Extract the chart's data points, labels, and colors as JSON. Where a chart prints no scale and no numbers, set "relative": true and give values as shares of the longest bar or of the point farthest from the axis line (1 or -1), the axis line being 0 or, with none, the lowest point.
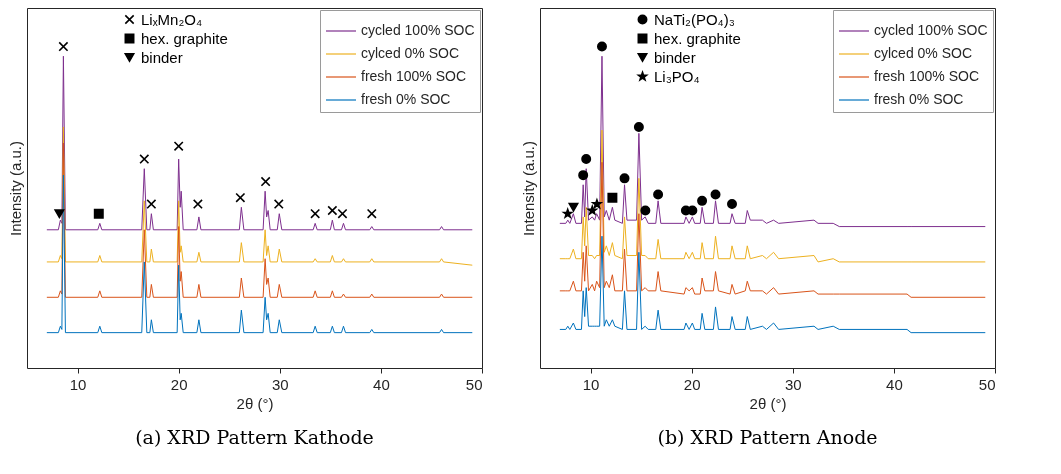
{
  "chart_data": [
    {
      "type": "line",
      "title": "(a) XRD Pattern Kathode",
      "xlabel": "2θ (°)",
      "ylabel": "Intensity (a.u.)",
      "relative": true,
      "tick_labels": "x",
      "legend": "top right",
      "xlim": [
        5,
        50
      ],
      "xticks": [
        10,
        20,
        30,
        40,
        50
      ],
      "x": [
        7,
        8.1,
        8.3,
        8.45,
        8.6,
        8.8,
        12.0,
        12.2,
        12.4,
        16.35,
        16.6,
        16.85,
        17.15,
        17.3,
        17.5,
        19.85,
        20.0,
        20.15,
        20.25,
        20.45,
        21.8,
        22.0,
        22.2,
        26.0,
        26.2,
        26.45,
        28.35,
        28.55,
        28.7,
        28.85,
        29.05,
        29.75,
        29.95,
        30.2,
        33.3,
        33.5,
        33.7,
        35.0,
        35.2,
        35.4,
        36.1,
        36.3,
        36.5,
        38.9,
        39.1,
        39.3,
        45.8,
        46.0,
        46.2,
        49
      ],
      "series": [
        {
          "name": "cycled 100% SOC",
          "color": "#7e2f8e",
          "values": [
            0.43,
            0.43,
            0.46,
            0.45,
            0.97,
            0.43,
            0.43,
            0.45,
            0.43,
            0.43,
            0.62,
            0.43,
            0.43,
            0.48,
            0.43,
            0.43,
            0.65,
            0.5,
            0.55,
            0.43,
            0.43,
            0.47,
            0.43,
            0.43,
            0.5,
            0.43,
            0.43,
            0.55,
            0.47,
            0.49,
            0.43,
            0.43,
            0.48,
            0.43,
            0.43,
            0.45,
            0.43,
            0.43,
            0.46,
            0.43,
            0.43,
            0.45,
            0.43,
            0.43,
            0.44,
            0.43,
            0.43,
            0.44,
            0.43,
            0.43
          ]
        },
        {
          "name": "cylced 0% SOC",
          "color": "#edb120",
          "values": [
            0.33,
            0.33,
            0.35,
            0.34,
            0.75,
            0.33,
            0.33,
            0.35,
            0.33,
            0.33,
            0.52,
            0.33,
            0.33,
            0.37,
            0.33,
            0.33,
            0.52,
            0.36,
            0.38,
            0.33,
            0.33,
            0.36,
            0.33,
            0.33,
            0.39,
            0.33,
            0.33,
            0.43,
            0.35,
            0.38,
            0.33,
            0.33,
            0.37,
            0.33,
            0.33,
            0.34,
            0.33,
            0.33,
            0.35,
            0.33,
            0.33,
            0.34,
            0.33,
            0.33,
            0.34,
            0.33,
            0.33,
            0.34,
            0.33,
            0.32
          ]
        },
        {
          "name": "fresh 100% SOC",
          "color": "#d95319",
          "values": [
            0.22,
            0.22,
            0.24,
            0.23,
            0.7,
            0.22,
            0.22,
            0.24,
            0.22,
            0.22,
            0.43,
            0.22,
            0.22,
            0.26,
            0.22,
            0.22,
            0.44,
            0.27,
            0.3,
            0.22,
            0.22,
            0.26,
            0.22,
            0.22,
            0.28,
            0.22,
            0.22,
            0.34,
            0.26,
            0.28,
            0.22,
            0.22,
            0.26,
            0.22,
            0.22,
            0.24,
            0.22,
            0.22,
            0.24,
            0.22,
            0.22,
            0.23,
            0.22,
            0.22,
            0.23,
            0.22,
            0.22,
            0.23,
            0.22,
            0.22
          ]
        },
        {
          "name": "fresh 0% SOC",
          "color": "#0072bd",
          "values": [
            0.11,
            0.11,
            0.13,
            0.12,
            0.6,
            0.11,
            0.11,
            0.13,
            0.11,
            0.11,
            0.33,
            0.11,
            0.11,
            0.15,
            0.11,
            0.11,
            0.32,
            0.15,
            0.17,
            0.11,
            0.11,
            0.15,
            0.11,
            0.11,
            0.18,
            0.11,
            0.11,
            0.22,
            0.15,
            0.17,
            0.11,
            0.11,
            0.15,
            0.11,
            0.11,
            0.13,
            0.11,
            0.11,
            0.13,
            0.11,
            0.11,
            0.13,
            0.11,
            0.11,
            0.12,
            0.11,
            0.11,
            0.12,
            0.11,
            0.11
          ]
        },
        {
          "name": "LiₓMn₂O₄",
          "type": "scatter",
          "marker": "cross",
          "color": "#000000",
          "x": [
            8.6,
            16.6,
            17.3,
            20.0,
            21.9,
            26.1,
            28.6,
            29.9,
            33.5,
            35.2,
            36.2,
            39.1
          ],
          "values": [
            1.0,
            0.65,
            0.51,
            0.69,
            0.51,
            0.53,
            0.58,
            0.51,
            0.48,
            0.49,
            0.48,
            0.48
          ]
        },
        {
          "name": "hex. graphite",
          "type": "scatter",
          "marker": "square",
          "color": "#000000",
          "x": [
            12.1
          ],
          "values": [
            0.48
          ]
        },
        {
          "name": "binder",
          "type": "scatter",
          "marker": "triangle",
          "color": "#000000",
          "x": [
            8.2
          ],
          "values": [
            0.48
          ]
        }
      ]
    },
    {
      "type": "line",
      "title": "(b) XRD Pattern Anode",
      "xlabel": "2θ (°)",
      "ylabel": "Intensity (a.u.)",
      "relative": true,
      "tick_labels": "x",
      "legend": "top right",
      "xlim": [
        5,
        50
      ],
      "xticks": [
        10,
        20,
        30,
        40,
        50
      ],
      "x": [
        7.0,
        7.55,
        7.75,
        7.95,
        8.3,
        8.55,
        9.1,
        9.27,
        9.42,
        9.57,
        9.8,
        10.17,
        10.4,
        10.6,
        10.9,
        11.13,
        11.35,
        11.56,
        11.85,
        12.16,
        12.4,
        13.15,
        13.36,
        13.6,
        14.55,
        14.78,
        15.05,
        15.4,
        15.7,
        16.45,
        16.68,
        16.95,
        19.25,
        19.43,
        19.75,
        20.07,
        20.3,
        20.85,
        21.03,
        21.3,
        22.15,
        22.36,
        22.65,
        23.8,
        23.99,
        24.3,
        25.3,
        25.5,
        25.8,
        27.0,
        27.4,
        28.1,
        28.6,
        32.1,
        32.5,
        34.0,
        34.6,
        41.3,
        41.7,
        49
      ],
      "series": [
        {
          "name": "cycled 100% SOC",
          "color": "#7e2f8e",
          "values": [
            0.45,
            0.45,
            0.46,
            0.45,
            0.48,
            0.45,
            0.45,
            0.57,
            0.47,
            0.62,
            0.46,
            0.47,
            0.46,
            0.48,
            0.46,
            0.97,
            0.47,
            0.49,
            0.46,
            0.5,
            0.46,
            0.45,
            0.57,
            0.46,
            0.46,
            0.73,
            0.46,
            0.47,
            0.45,
            0.45,
            0.52,
            0.45,
            0.45,
            0.47,
            0.45,
            0.47,
            0.45,
            0.45,
            0.5,
            0.45,
            0.45,
            0.52,
            0.45,
            0.45,
            0.48,
            0.45,
            0.45,
            0.49,
            0.46,
            0.46,
            0.45,
            0.46,
            0.45,
            0.46,
            0.45,
            0.45,
            0.44,
            0.44,
            0.44,
            0.44
          ]
        },
        {
          "name": "cylced 0% SOC",
          "color": "#edb120",
          "values": [
            0.34,
            0.34,
            0.34,
            0.34,
            0.37,
            0.34,
            0.34,
            0.47,
            0.38,
            0.5,
            0.35,
            0.35,
            0.34,
            0.35,
            0.35,
            0.74,
            0.36,
            0.38,
            0.35,
            0.39,
            0.35,
            0.34,
            0.47,
            0.35,
            0.35,
            0.59,
            0.35,
            0.35,
            0.34,
            0.34,
            0.4,
            0.34,
            0.34,
            0.36,
            0.34,
            0.36,
            0.34,
            0.34,
            0.39,
            0.34,
            0.34,
            0.41,
            0.34,
            0.34,
            0.38,
            0.34,
            0.34,
            0.38,
            0.34,
            0.35,
            0.34,
            0.36,
            0.34,
            0.35,
            0.33,
            0.34,
            0.33,
            0.33,
            0.33,
            0.33
          ]
        },
        {
          "name": "fresh 100% SOC",
          "color": "#d95319",
          "values": [
            0.24,
            0.24,
            0.24,
            0.24,
            0.27,
            0.24,
            0.24,
            0.36,
            0.27,
            0.38,
            0.24,
            0.26,
            0.24,
            0.27,
            0.25,
            0.64,
            0.25,
            0.27,
            0.25,
            0.29,
            0.24,
            0.24,
            0.37,
            0.24,
            0.24,
            0.48,
            0.24,
            0.25,
            0.24,
            0.24,
            0.3,
            0.24,
            0.23,
            0.25,
            0.24,
            0.25,
            0.23,
            0.23,
            0.28,
            0.24,
            0.24,
            0.3,
            0.24,
            0.23,
            0.26,
            0.23,
            0.24,
            0.27,
            0.24,
            0.24,
            0.23,
            0.25,
            0.23,
            0.24,
            0.23,
            0.23,
            0.23,
            0.23,
            0.22,
            0.22
          ]
        },
        {
          "name": "fresh 0% SOC",
          "color": "#0072bd",
          "values": [
            0.12,
            0.12,
            0.13,
            0.12,
            0.14,
            0.12,
            0.12,
            0.24,
            0.16,
            0.25,
            0.13,
            0.13,
            0.13,
            0.13,
            0.13,
            0.41,
            0.13,
            0.15,
            0.13,
            0.15,
            0.13,
            0.12,
            0.24,
            0.12,
            0.12,
            0.36,
            0.12,
            0.13,
            0.12,
            0.12,
            0.18,
            0.12,
            0.12,
            0.14,
            0.12,
            0.14,
            0.12,
            0.12,
            0.17,
            0.12,
            0.12,
            0.19,
            0.12,
            0.12,
            0.16,
            0.12,
            0.12,
            0.16,
            0.12,
            0.13,
            0.12,
            0.14,
            0.12,
            0.13,
            0.12,
            0.13,
            0.12,
            0.12,
            0.11,
            0.11
          ]
        },
        {
          "name": "NaTi₂(PO₄)₃",
          "type": "scatter",
          "marker": "circle",
          "color": "#000000",
          "x": [
            11.13,
            9.57,
            9.27,
            14.78,
            13.36,
            15.42,
            16.68,
            19.43,
            20.07,
            21.03,
            22.36,
            23.99
          ],
          "values": [
            1.0,
            0.65,
            0.6,
            0.75,
            0.59,
            0.49,
            0.54,
            0.49,
            0.49,
            0.52,
            0.54,
            0.51
          ]
        },
        {
          "name": "hex. graphite",
          "type": "scatter",
          "marker": "square",
          "color": "#000000",
          "x": [
            12.16
          ],
          "values": [
            0.53
          ]
        },
        {
          "name": "binder",
          "type": "scatter",
          "marker": "triangle",
          "color": "#000000",
          "x": [
            8.31
          ],
          "values": [
            0.5
          ]
        },
        {
          "name": "Li₃PO₄",
          "type": "scatter",
          "marker": "star",
          "color": "#000000",
          "x": [
            7.74,
            10.17,
            10.63
          ],
          "values": [
            0.48,
            0.49,
            0.51
          ]
        }
      ]
    }
  ]
}
